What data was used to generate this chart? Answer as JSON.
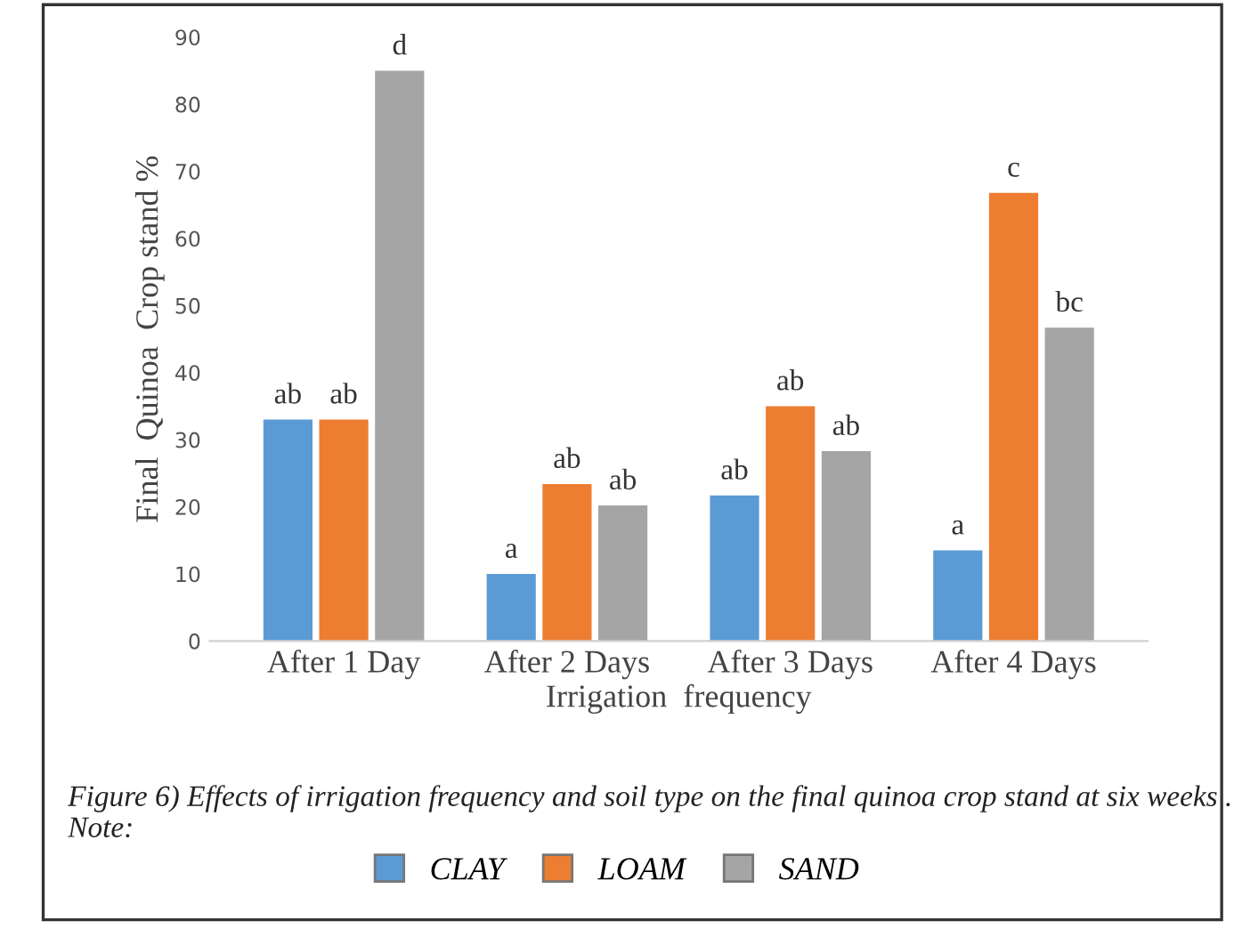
{
  "chart_data": {
    "type": "bar",
    "xlabel": "Irrigation  frequency",
    "ylabel": "Final  Quinoa  Crop stand %",
    "categories": [
      "After 1 Day",
      "After 2 Days",
      "After 3 Days",
      "After 4 Days"
    ],
    "series": [
      {
        "name": "CLAY",
        "color": "#5b9bd5",
        "values": [
          33,
          10,
          21.7,
          13.5
        ],
        "value_labels": [
          "ab",
          "a",
          "ab",
          "a"
        ]
      },
      {
        "name": "LOAM",
        "color": "#ed7d31",
        "values": [
          33,
          23.4,
          35,
          66.8
        ],
        "value_labels": [
          "ab",
          "ab",
          "ab",
          "c"
        ]
      },
      {
        "name": "SAND",
        "color": "#a5a5a5",
        "values": [
          85,
          20.2,
          28.3,
          46.7
        ],
        "value_labels": [
          "d",
          "ab",
          "ab",
          "bc"
        ]
      }
    ],
    "ylim": [
      0,
      90
    ],
    "yticks": [
      0,
      10,
      20,
      30,
      40,
      50,
      60,
      70,
      80,
      90
    ],
    "grid": false,
    "legend": "bottom",
    "annotations": [
      "Figure 6) Effects of irrigation frequency and soil type on the final quinoa crop stand at six weeks . Note:"
    ]
  }
}
